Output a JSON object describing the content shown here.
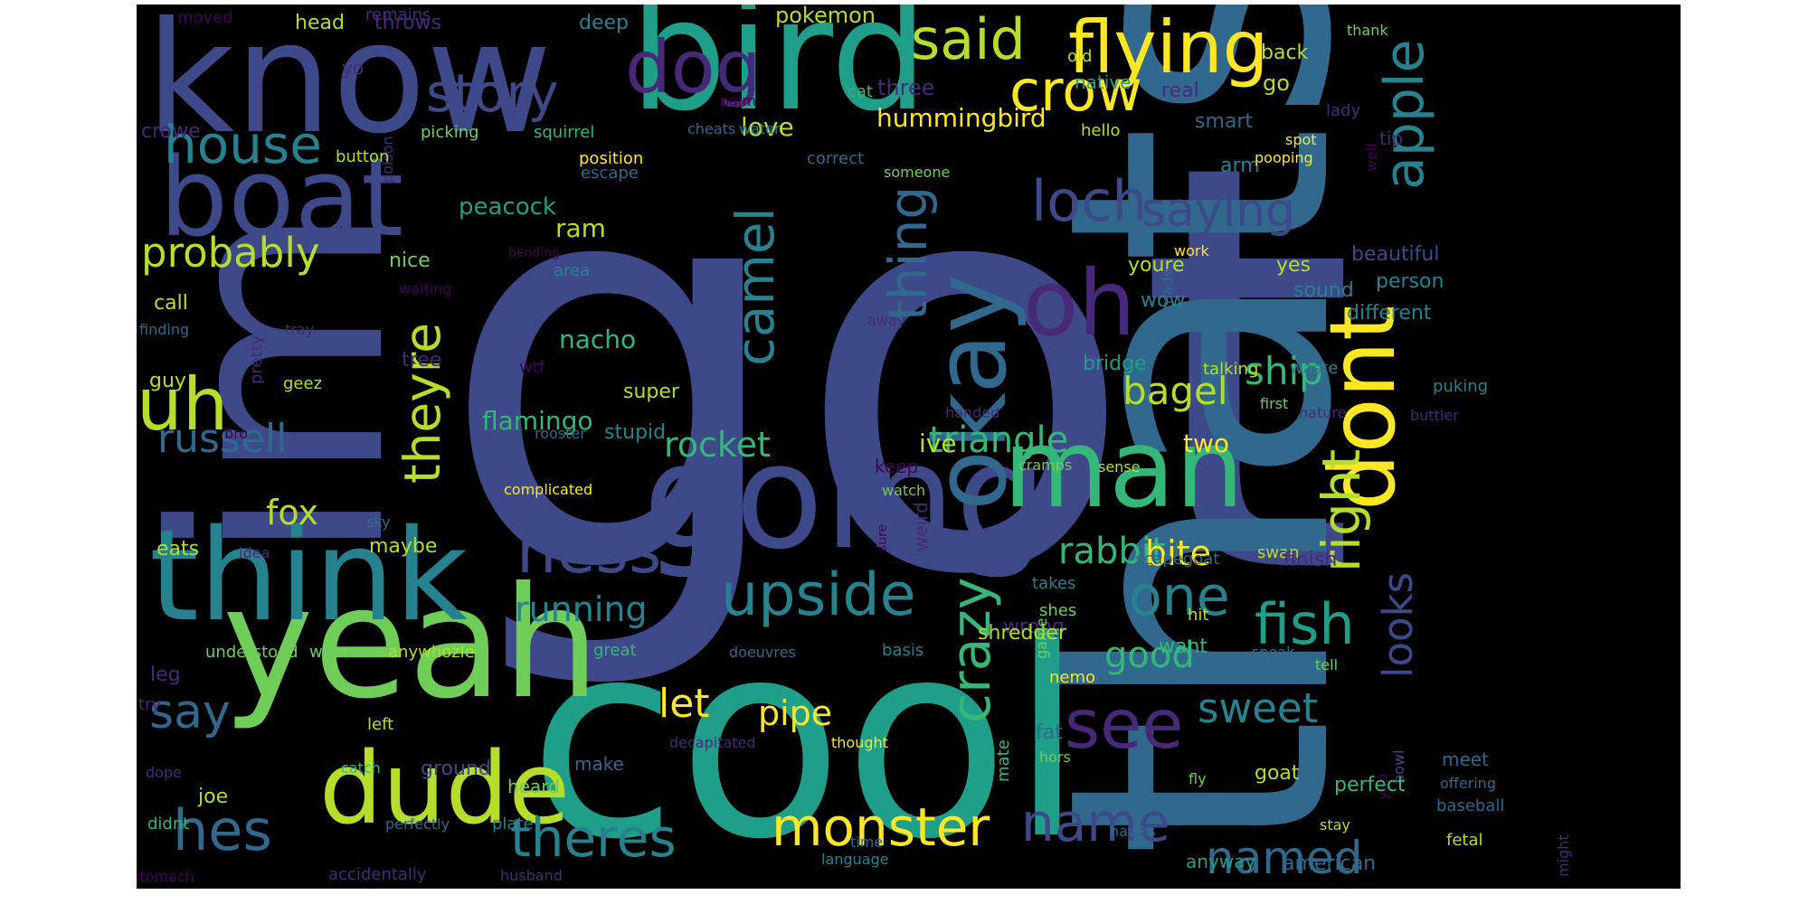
{
  "palette": {
    "background": "#000000",
    "page": "#ffffff",
    "viridis": [
      "#440154",
      "#482878",
      "#3e4989",
      "#31688e",
      "#26828e",
      "#1f9e89",
      "#35b779",
      "#6ece58",
      "#b5de2b",
      "#fde725"
    ]
  },
  "words": [
    {
      "text": "got",
      "color": "#3e4989"
    },
    {
      "text": "thats",
      "color": "#31688e"
    },
    {
      "text": "cool",
      "color": "#1f9e89"
    },
    {
      "text": "im",
      "color": "#3e4989"
    },
    {
      "text": "know",
      "color": "#3e4989"
    },
    {
      "text": "bird",
      "color": "#1f9e89"
    },
    {
      "text": "yeah",
      "color": "#6ece58"
    },
    {
      "text": "think",
      "color": "#26828e"
    },
    {
      "text": "going",
      "color": "#3e4989"
    },
    {
      "text": "man",
      "color": "#35b779"
    },
    {
      "text": "boat",
      "color": "#3e4989"
    },
    {
      "text": "dude",
      "color": "#b5de2b"
    },
    {
      "text": "okay",
      "color": "#31688e"
    },
    {
      "text": "oh",
      "color": "#482878"
    },
    {
      "text": "dont",
      "color": "#fde725"
    },
    {
      "text": "flying",
      "color": "#fde725"
    },
    {
      "text": "dog",
      "color": "#482878"
    },
    {
      "text": "said",
      "color": "#b5de2b"
    },
    {
      "text": "crow",
      "color": "#fde725"
    },
    {
      "text": "story",
      "color": "#3e4989"
    },
    {
      "text": "house",
      "color": "#26828e"
    },
    {
      "text": "loch",
      "color": "#3e4989"
    },
    {
      "text": "apple",
      "color": "#26828e"
    },
    {
      "text": "saying",
      "color": "#3e4989"
    },
    {
      "text": "uh",
      "color": "#b5de2b"
    },
    {
      "text": "probably",
      "color": "#b5de2b"
    },
    {
      "text": "camel",
      "color": "#26828e"
    },
    {
      "text": "thing",
      "color": "#31688e"
    },
    {
      "text": "theyre",
      "color": "#b5de2b"
    },
    {
      "text": "russell",
      "color": "#31688e"
    },
    {
      "text": "ness",
      "color": "#3e4989"
    },
    {
      "text": "upside",
      "color": "#26828e"
    },
    {
      "text": "one",
      "color": "#26828e"
    },
    {
      "text": "fish",
      "color": "#1f9e89"
    },
    {
      "text": "right",
      "color": "#b5de2b"
    },
    {
      "text": "crazy",
      "color": "#35b779"
    },
    {
      "text": "see",
      "color": "#482878"
    },
    {
      "text": "say",
      "color": "#31688e"
    },
    {
      "text": "hes",
      "color": "#31688e"
    },
    {
      "text": "theres",
      "color": "#26828e"
    },
    {
      "text": "monster",
      "color": "#fde725"
    },
    {
      "text": "name",
      "color": "#3e4989"
    },
    {
      "text": "named",
      "color": "#31688e"
    },
    {
      "text": "sweet",
      "color": "#26828e"
    },
    {
      "text": "looks",
      "color": "#3e4989"
    },
    {
      "text": "ship",
      "color": "#35b779"
    },
    {
      "text": "bagel",
      "color": "#b5de2b"
    },
    {
      "text": "triangle",
      "color": "#35b779"
    },
    {
      "text": "rocket",
      "color": "#35b779"
    },
    {
      "text": "fox",
      "color": "#b5de2b"
    },
    {
      "text": "rabbit",
      "color": "#35b779"
    },
    {
      "text": "bite",
      "color": "#fde725"
    },
    {
      "text": "running",
      "color": "#26828e"
    },
    {
      "text": "good",
      "color": "#35b779"
    },
    {
      "text": "let",
      "color": "#fde725"
    },
    {
      "text": "pipe",
      "color": "#fde725"
    },
    {
      "text": "hummingbird",
      "color": "#fde725"
    },
    {
      "text": "nacho",
      "color": "#35b779"
    },
    {
      "text": "flamingo",
      "color": "#35b779"
    },
    {
      "text": "ive",
      "color": "#b5de2b"
    },
    {
      "text": "two",
      "color": "#fde725"
    },
    {
      "text": "peacock",
      "color": "#1f9e89"
    },
    {
      "text": "ram",
      "color": "#b5de2b"
    },
    {
      "text": "love",
      "color": "#b5de2b"
    },
    {
      "text": "pokemon",
      "color": "#b5de2b"
    },
    {
      "text": "head",
      "color": "#b5de2b"
    },
    {
      "text": "throws",
      "color": "#482878"
    },
    {
      "text": "deep",
      "color": "#26828e"
    },
    {
      "text": "moved",
      "color": "#440154"
    },
    {
      "text": "remains",
      "color": "#482878"
    },
    {
      "text": "yo",
      "color": "#482878"
    },
    {
      "text": "cat",
      "color": "#35b779"
    },
    {
      "text": "old",
      "color": "#b5de2b"
    },
    {
      "text": "native",
      "color": "#1f9e89"
    },
    {
      "text": "three",
      "color": "#482878"
    },
    {
      "text": "real",
      "color": "#482878"
    },
    {
      "text": "back",
      "color": "#b5de2b"
    },
    {
      "text": "go",
      "color": "#b5de2b"
    },
    {
      "text": "thank",
      "color": "#6ece58"
    },
    {
      "text": "lady",
      "color": "#482878"
    },
    {
      "text": "palm",
      "color": "#440154"
    },
    {
      "text": "crowe",
      "color": "#482878"
    },
    {
      "text": "picking",
      "color": "#6ece58"
    },
    {
      "text": "squirrel",
      "color": "#35b779"
    },
    {
      "text": "cheats",
      "color": "#31688e"
    },
    {
      "text": "water",
      "color": "#26828e"
    },
    {
      "text": "smart",
      "color": "#31688e"
    },
    {
      "text": "hello",
      "color": "#b5de2b"
    },
    {
      "text": "spot",
      "color": "#fde725"
    },
    {
      "text": "tip",
      "color": "#482878"
    },
    {
      "text": "poison",
      "color": "#482878"
    },
    {
      "text": "button",
      "color": "#b5de2b"
    },
    {
      "text": "position",
      "color": "#fde725"
    },
    {
      "text": "correct",
      "color": "#31688e"
    },
    {
      "text": "arm",
      "color": "#26828e"
    },
    {
      "text": "pooping",
      "color": "#fde725"
    },
    {
      "text": "well",
      "color": "#440154"
    },
    {
      "text": "escape",
      "color": "#31688e"
    },
    {
      "text": "someone",
      "color": "#6ece58"
    },
    {
      "text": "nice",
      "color": "#6ece58"
    },
    {
      "text": "bending",
      "color": "#440154"
    },
    {
      "text": "area",
      "color": "#26828e"
    },
    {
      "text": "youre",
      "color": "#b5de2b"
    },
    {
      "text": "work",
      "color": "#fde725"
    },
    {
      "text": "yes",
      "color": "#b5de2b"
    },
    {
      "text": "beautiful",
      "color": "#3e4989"
    },
    {
      "text": "call",
      "color": "#b5de2b"
    },
    {
      "text": "waiting",
      "color": "#440154"
    },
    {
      "text": "wow",
      "color": "#26828e"
    },
    {
      "text": "sound",
      "color": "#26828e"
    },
    {
      "text": "person",
      "color": "#26828e"
    },
    {
      "text": "finding",
      "color": "#31688e"
    },
    {
      "text": "tray",
      "color": "#482878"
    },
    {
      "text": "made",
      "color": "#31688e"
    },
    {
      "text": "stuff",
      "color": "#31688e"
    },
    {
      "text": "different",
      "color": "#26828e"
    },
    {
      "text": "guy",
      "color": "#b5de2b"
    },
    {
      "text": "pretty",
      "color": "#482878"
    },
    {
      "text": "wtf",
      "color": "#440154"
    },
    {
      "text": "away",
      "color": "#482878"
    },
    {
      "text": "tree",
      "color": "#482878"
    },
    {
      "text": "geez",
      "color": "#b5de2b"
    },
    {
      "text": "talking",
      "color": "#b5de2b"
    },
    {
      "text": "waste",
      "color": "#26828e"
    },
    {
      "text": "puking",
      "color": "#26828e"
    },
    {
      "text": "bridge",
      "color": "#1f9e89"
    },
    {
      "text": "super",
      "color": "#b5de2b"
    },
    {
      "text": "handed",
      "color": "#482878"
    },
    {
      "text": "first",
      "color": "#6ece58"
    },
    {
      "text": "nature",
      "color": "#482878"
    },
    {
      "text": "buttler",
      "color": "#482878"
    },
    {
      "text": "bro",
      "color": "#440154"
    },
    {
      "text": "stupid",
      "color": "#26828e"
    },
    {
      "text": "rooster",
      "color": "#31688e"
    },
    {
      "text": "keep",
      "color": "#440154"
    },
    {
      "text": "watch",
      "color": "#6ece58"
    },
    {
      "text": "cramps",
      "color": "#6ece58"
    },
    {
      "text": "sense",
      "color": "#b5de2b"
    },
    {
      "text": "complicated",
      "color": "#fde725"
    },
    {
      "text": "eats",
      "color": "#b5de2b"
    },
    {
      "text": "idea",
      "color": "#482878"
    },
    {
      "text": "maybe",
      "color": "#b5de2b"
    },
    {
      "text": "sky",
      "color": "#31688e"
    },
    {
      "text": "sure",
      "color": "#440154"
    },
    {
      "text": "weird",
      "color": "#482878"
    },
    {
      "text": "scapegoat",
      "color": "#31688e"
    },
    {
      "text": "swan",
      "color": "#b5de2b"
    },
    {
      "text": "finish",
      "color": "#482878"
    },
    {
      "text": "takes",
      "color": "#26828e"
    },
    {
      "text": "shes",
      "color": "#6ece58"
    },
    {
      "text": "wrong",
      "color": "#482878"
    },
    {
      "text": "hit",
      "color": "#b5de2b"
    },
    {
      "text": "understood",
      "color": "#6ece58"
    },
    {
      "text": "whos",
      "color": "#6ece58"
    },
    {
      "text": "anywhozle",
      "color": "#b5de2b"
    },
    {
      "text": "great",
      "color": "#35b779"
    },
    {
      "text": "doeuvres",
      "color": "#31688e"
    },
    {
      "text": "basis",
      "color": "#26828e"
    },
    {
      "text": "shredder",
      "color": "#b5de2b"
    },
    {
      "text": "want",
      "color": "#35b779"
    },
    {
      "text": "speak",
      "color": "#31688e"
    },
    {
      "text": "leg",
      "color": "#482878"
    },
    {
      "text": "game",
      "color": "#6ece58"
    },
    {
      "text": "nemo",
      "color": "#fde725"
    },
    {
      "text": "tell",
      "color": "#6ece58"
    },
    {
      "text": "try",
      "color": "#482878"
    },
    {
      "text": "left",
      "color": "#b5de2b"
    },
    {
      "text": "decapitated",
      "color": "#482878"
    },
    {
      "text": "thought",
      "color": "#fde725"
    },
    {
      "text": "fat",
      "color": "#31688e"
    },
    {
      "text": "hors",
      "color": "#6ece58"
    },
    {
      "text": "fly",
      "color": "#6ece58"
    },
    {
      "text": "meet",
      "color": "#31688e"
    },
    {
      "text": "offering",
      "color": "#31688e"
    },
    {
      "text": "bowl",
      "color": "#3e4989"
    },
    {
      "text": "yep",
      "color": "#440154"
    },
    {
      "text": "dope",
      "color": "#482878"
    },
    {
      "text": "catch",
      "color": "#35b779"
    },
    {
      "text": "joe",
      "color": "#b5de2b"
    },
    {
      "text": "ground",
      "color": "#3e4989"
    },
    {
      "text": "heard",
      "color": "#6ece58"
    },
    {
      "text": "make",
      "color": "#31688e"
    },
    {
      "text": "mate",
      "color": "#35b779"
    },
    {
      "text": "goat",
      "color": "#b5de2b"
    },
    {
      "text": "perfect",
      "color": "#35b779"
    },
    {
      "text": "baseball",
      "color": "#31688e"
    },
    {
      "text": "didnt",
      "color": "#35b779"
    },
    {
      "text": "perfectly",
      "color": "#31688e"
    },
    {
      "text": "plate",
      "color": "#26828e"
    },
    {
      "text": "stay",
      "color": "#b5de2b"
    },
    {
      "text": "hawks",
      "color": "#31688e"
    },
    {
      "text": "fetal",
      "color": "#b5de2b"
    },
    {
      "text": "time",
      "color": "#31688e"
    },
    {
      "text": "might",
      "color": "#482878"
    },
    {
      "text": "stomach",
      "color": "#440154"
    },
    {
      "text": "accidentally",
      "color": "#482878"
    },
    {
      "text": "husband",
      "color": "#482878"
    },
    {
      "text": "language",
      "color": "#26828e"
    },
    {
      "text": "anyway",
      "color": "#1f9e89"
    },
    {
      "text": "american",
      "color": "#31688e"
    }
  ]
}
